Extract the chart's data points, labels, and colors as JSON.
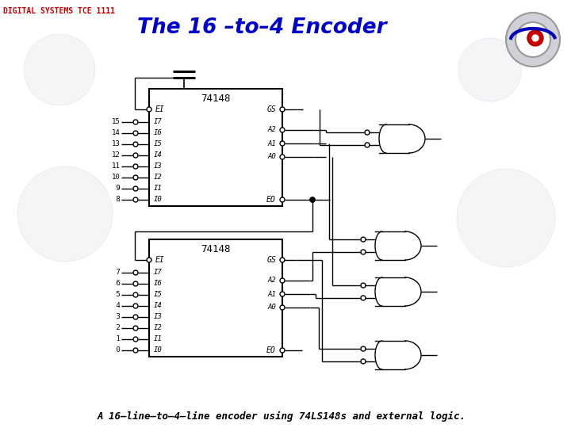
{
  "title": "The 16 –to–4 Encoder",
  "header": "DIGITAL SYSTEMS TCE 1111",
  "caption": "A 16–line–to–4–line encoder using 74LS148s and external logic.",
  "bg_color": "#ffffff",
  "header_color": "#cc0000",
  "title_color": "#0000cc",
  "chip_label": "74148",
  "chip1_inputs": [
    "I7",
    "I6",
    "I5",
    "I4",
    "I3",
    "I2",
    "I1",
    "I0"
  ],
  "chip1_input_nums": [
    "15",
    "14",
    "13",
    "12",
    "11",
    "10",
    " 9",
    " 8"
  ],
  "chip2_inputs": [
    "I7",
    "I6",
    "I5",
    "I4",
    "I3",
    "I2",
    "I1",
    "I0"
  ],
  "chip2_input_nums": [
    " 7",
    " 6",
    " 5",
    " 4",
    " 3",
    " 2",
    " 1",
    " 0"
  ],
  "chip_outputs": [
    "A2",
    "A1",
    "A0"
  ],
  "ei_label": "EI",
  "eo_label": "EO",
  "gs_label": "GS"
}
